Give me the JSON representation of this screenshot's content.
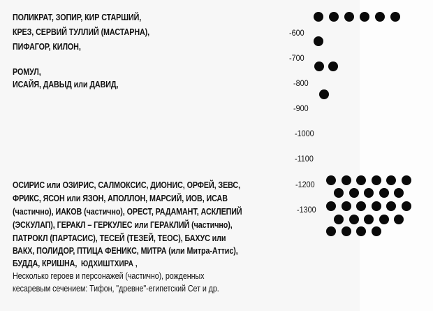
{
  "top_lines": [
    "ПОЛИКРАТ, ЗОПИР,  КИР СТАРШИЙ,",
    "КРЕЗ, СЕРВИЙ ТУЛЛИЙ (МАСТАРНА),",
    "ПИФАГОР,  КИЛОН,",
    "РОМУЛ,",
    "ИСАЙЯ,  ДАВЫД или ДАВИД,"
  ],
  "bottom_lines": [
    "ОСИРИС или ОЗИРИС, САЛМОКСИС, ДИОНИС, ОРФЕЙ, ЗЕВС,",
    "ФРИКС, ЯСОН или ЯЗОН, АПОЛЛОН, МАРСИЙ, ИОВ, ИСАВ",
    "(частично), ИАКОВ (частично), ОРЕСТ, РАДАМАНТ, АСКЛЕПИЙ",
    "(ЭСКУЛАП), ГЕРАКЛ – ГЕРКУЛЕС или ГЕРАКЛИЙ  (частично),",
    " ПАТРОКЛ (ПАРТАСИС), ТЕСЕЙ  (ТЕЗЕЙ, ТЕОС),  БАХУС или",
    "ВАКХ, ПОЛИДОР, ПТИЦА ФЕНИКС, МИТРА (или Митра-Аттис),",
    "БУДДА, КРИШНА,  ",
    "Несколько героев и персонажей (частично), рожденных",
    "кесаревым сечением:  Тифон, \"древне\"-египетский Сет и др."
  ],
  "emphasis": "ЮДХИШТХИРА ,",
  "timeline_ticks": [
    "-600",
    "-700",
    "-800",
    "-900",
    "-1000",
    "-1100",
    "-1200",
    "-1300"
  ],
  "dot_counts": {
    "top_row": 6,
    "near_600": 1,
    "near_700": 2,
    "near_800": 1,
    "cluster_1200_1300": 27
  },
  "dot_color": "#0a0a0a"
}
